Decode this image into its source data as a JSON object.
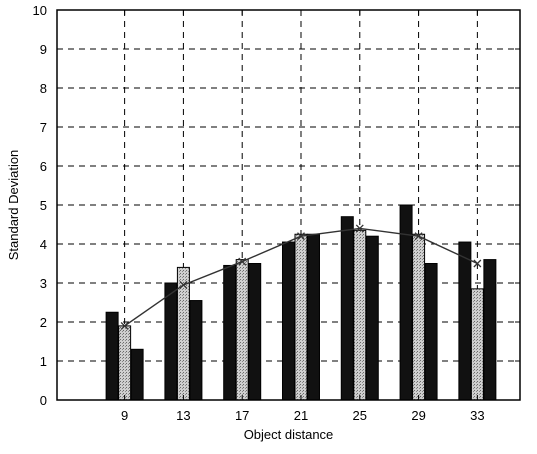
{
  "chart_data": {
    "type": "bar",
    "title": "",
    "xlabel": "Object distance",
    "ylabel": "Standard Deviation",
    "categories": [
      "9",
      "13",
      "17",
      "21",
      "25",
      "29",
      "33"
    ],
    "x": [
      9,
      13,
      17,
      21,
      25,
      29,
      33
    ],
    "xlim": [
      4.4,
      35.9
    ],
    "ylim": [
      0,
      10
    ],
    "yticks": [
      "0",
      "1",
      "2",
      "3",
      "4",
      "5",
      "6",
      "7",
      "8",
      "9",
      "10"
    ],
    "grid": true,
    "grid_style": "dashed",
    "series": [
      {
        "values": [
          2.25,
          3.0,
          3.45,
          4.05,
          4.7,
          5.0,
          4.05
        ],
        "color": "#111111",
        "fill": "solid"
      },
      {
        "values": [
          1.9,
          3.4,
          3.6,
          4.25,
          4.35,
          4.25,
          2.85
        ],
        "color": "#bdbdbd",
        "fill": "stippled"
      },
      {
        "values": [
          1.3,
          2.55,
          3.5,
          4.25,
          4.2,
          3.5,
          3.6
        ],
        "color": "#111111",
        "fill": "solid"
      }
    ],
    "line": {
      "values": [
        1.9,
        2.95,
        3.55,
        4.2,
        4.4,
        4.2,
        3.5
      ],
      "marker": "x",
      "color": "#333333"
    },
    "legend": "none"
  }
}
